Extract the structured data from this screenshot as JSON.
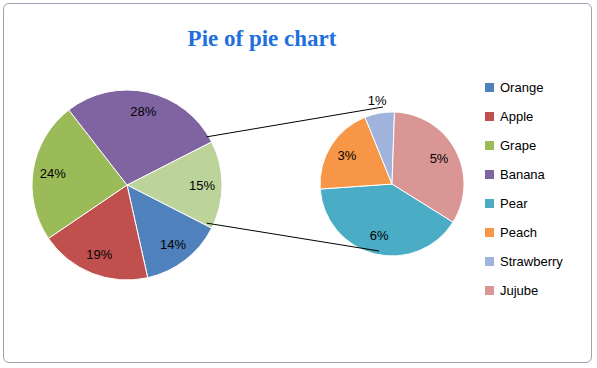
{
  "chart_data": [
    {
      "type": "pie",
      "title": "Pie of pie chart",
      "categories": [
        null,
        "Orange",
        "Apple",
        "Grape",
        "Banana"
      ],
      "values": [
        15,
        14,
        19,
        24,
        28
      ],
      "value_labels": [
        "15%",
        "14%",
        "19%",
        "24%",
        "28%"
      ],
      "colors": [
        "#bcd49a",
        "#4f81bd",
        "#c0504d",
        "#9bbb59",
        "#8064a2"
      ],
      "data_labels": true,
      "legend": "right"
    },
    {
      "type": "pie",
      "categories": [
        "Pear",
        "Peach",
        "Strawberry",
        "Jujube"
      ],
      "values": [
        6,
        3,
        1,
        5
      ],
      "value_labels": [
        "6%",
        "3%",
        "1%",
        "5%"
      ],
      "colors": [
        "#4bacc6",
        "#f79646",
        "#9fb3dc",
        "#d99694"
      ],
      "data_labels": true
    }
  ]
}
